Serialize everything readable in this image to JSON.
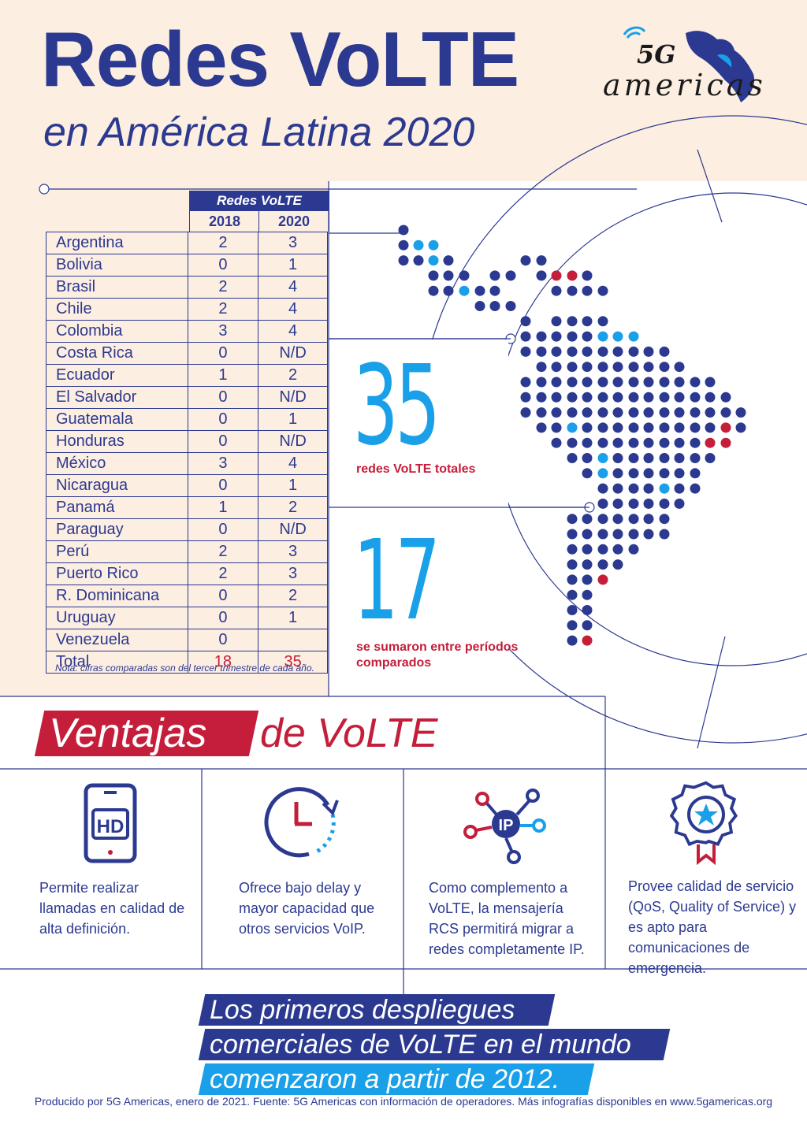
{
  "header": {
    "title": "Redes VoLTE",
    "subtitle": "en América Latina 2020",
    "logo_text": "americas",
    "logo_mark": "5G"
  },
  "table": {
    "group_header": "Redes VoLTE",
    "col_2018": "2018",
    "col_2020": "2020",
    "rows": [
      {
        "country": "Argentina",
        "v2018": "2",
        "v2020": "3"
      },
      {
        "country": "Bolivia",
        "v2018": "0",
        "v2020": "1"
      },
      {
        "country": "Brasil",
        "v2018": "2",
        "v2020": "4"
      },
      {
        "country": "Chile",
        "v2018": "2",
        "v2020": "4"
      },
      {
        "country": "Colombia",
        "v2018": "3",
        "v2020": "4"
      },
      {
        "country": "Costa Rica",
        "v2018": "0",
        "v2020": "N/D"
      },
      {
        "country": "Ecuador",
        "v2018": "1",
        "v2020": "2"
      },
      {
        "country": "El Salvador",
        "v2018": "0",
        "v2020": "N/D"
      },
      {
        "country": "Guatemala",
        "v2018": "0",
        "v2020": "1"
      },
      {
        "country": "Honduras",
        "v2018": "0",
        "v2020": "N/D"
      },
      {
        "country": "México",
        "v2018": "3",
        "v2020": "4"
      },
      {
        "country": "Nicaragua",
        "v2018": "0",
        "v2020": "1"
      },
      {
        "country": "Panamá",
        "v2018": "1",
        "v2020": "2"
      },
      {
        "country": "Paraguay",
        "v2018": "0",
        "v2020": "N/D"
      },
      {
        "country": "Perú",
        "v2018": "2",
        "v2020": "3"
      },
      {
        "country": "Puerto Rico",
        "v2018": "2",
        "v2020": "3"
      },
      {
        "country": "R.  Dominicana",
        "v2018": "0",
        "v2020": "2"
      },
      {
        "country": "Uruguay",
        "v2018": "0",
        "v2020": "1"
      },
      {
        "country": "Venezuela",
        "v2018": "0",
        "v2020": ""
      }
    ],
    "total": {
      "country": "Total",
      "v2018": "18",
      "v2020": "35"
    },
    "note": "Nota: cifras comparadas son del tercer trimestre de cada año."
  },
  "stats": {
    "total_value": "35",
    "total_label": "redes VoLTE totales",
    "added_value": "17",
    "added_label": "se sumaron entre períodos comparados"
  },
  "advantages": {
    "heading_highlight": "Ventajas",
    "heading_rest": "de VoLTE",
    "items": [
      {
        "icon": "hd-phone-icon",
        "icon_text": "HD",
        "text": "Permite realizar llamadas en calidad de alta definición."
      },
      {
        "icon": "clock-icon",
        "text": "Ofrece bajo delay y mayor capacidad que otros servicios VoIP."
      },
      {
        "icon": "ip-network-icon",
        "icon_text": "IP",
        "text": "Como complemento a VoLTE, la mensajería RCS permitirá migrar a redes completamente IP."
      },
      {
        "icon": "quality-badge-icon",
        "text": "Provee calidad de servicio (QoS, Quality of Service) y es apto para comunicaciones de emergencia."
      }
    ]
  },
  "quote": {
    "line1": "Los primeros despliegues",
    "line2": "comerciales de VoLTE en el mundo",
    "line3": "comenzaron a partir de 2012."
  },
  "footer": "Producido por 5G Americas, enero de 2021. Fuente: 5G Americas con información de operadores. Más infografías disponibles en www.5gamericas.org",
  "colors": {
    "navy": "#2b3990",
    "blue": "#1aa0e8",
    "red": "#c41e3a",
    "peach": "#fdeee2"
  }
}
